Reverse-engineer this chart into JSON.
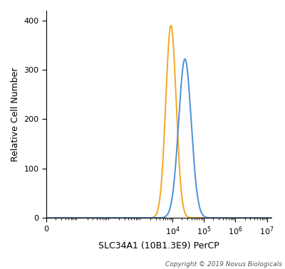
{
  "title": "",
  "xlabel": "SLC34A1 (10B1.3E9) PerCP",
  "ylabel": "Relative Cell Number",
  "copyright": "Copyright © 2019 Novus Biologicals",
  "ylim": [
    0,
    420
  ],
  "yticks": [
    0,
    100,
    200,
    300,
    400
  ],
  "orange_peak_x": 9000,
  "orange_peak_y": 390,
  "orange_sigma_log": 0.165,
  "blue_peak_x": 25000,
  "blue_peak_y": 322,
  "blue_sigma_log": 0.2,
  "orange_color": "#F5A623",
  "blue_color": "#4A90D9",
  "bg_color": "#FFFFFF",
  "linewidth": 1.4,
  "figsize": [
    4.0,
    3.78
  ],
  "dpi": 100,
  "xmin_log": 0.45,
  "xmax_log": 7.15,
  "xtick_positions": [
    1,
    10000,
    100000,
    1000000,
    10000000
  ],
  "xtick_labels": [
    "0",
    "10$^4$",
    "10$^5$",
    "10$^6$",
    "10$^7$"
  ]
}
